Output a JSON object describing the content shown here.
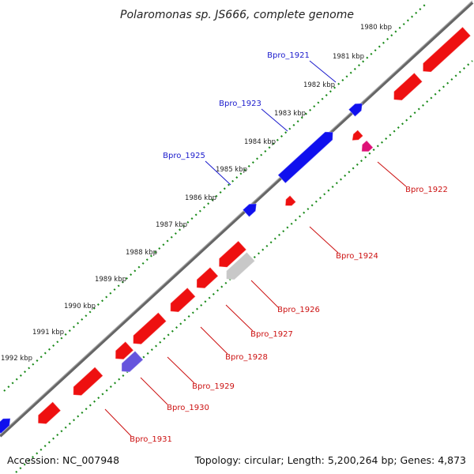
{
  "title": "Polaromonas sp. JS666, complete genome",
  "ticks": [
    "1980 kbp",
    "1981 kbp",
    "1982 kbp",
    "1983 kbp",
    "1984 kbp",
    "1985 kbp",
    "1986 kbp",
    "1987 kbp",
    "1988 kbp",
    "1989 kbp",
    "1990 kbp",
    "1991 kbp",
    "1992 kbp"
  ],
  "genes_forward": [
    {
      "label": "Bpro_1921",
      "color": "#1a1acc"
    },
    {
      "label": "Bpro_1923",
      "color": "#1a1acc"
    },
    {
      "label": "Bpro_1925",
      "color": "#1a1acc"
    }
  ],
  "genes_reverse": [
    {
      "label": "Bpro_1922",
      "color": "#cc1111"
    },
    {
      "label": "Bpro_1924",
      "color": "#cc1111"
    },
    {
      "label": "Bpro_1926",
      "color": "#cc1111"
    },
    {
      "label": "Bpro_1927",
      "color": "#cc1111"
    },
    {
      "label": "Bpro_1928",
      "color": "#cc1111"
    },
    {
      "label": "Bpro_1929",
      "color": "#cc1111"
    },
    {
      "label": "Bpro_1930",
      "color": "#cc1111"
    },
    {
      "label": "Bpro_1931",
      "color": "#cc1111"
    }
  ],
  "footer": {
    "accession": "Accession: NC_007948",
    "topology": "Topology: circular; Length: 5,200,264 bp; Genes: 4,873"
  },
  "colors": {
    "backbone": "#777777",
    "tick_ring": "#1a8a1a",
    "forward_gene": "#1010ee",
    "reverse_gene": "#ee1010",
    "rna_gene": "#dd1177",
    "grey_gene": "#c8c8c8",
    "purple_gene": "#6655dd"
  }
}
